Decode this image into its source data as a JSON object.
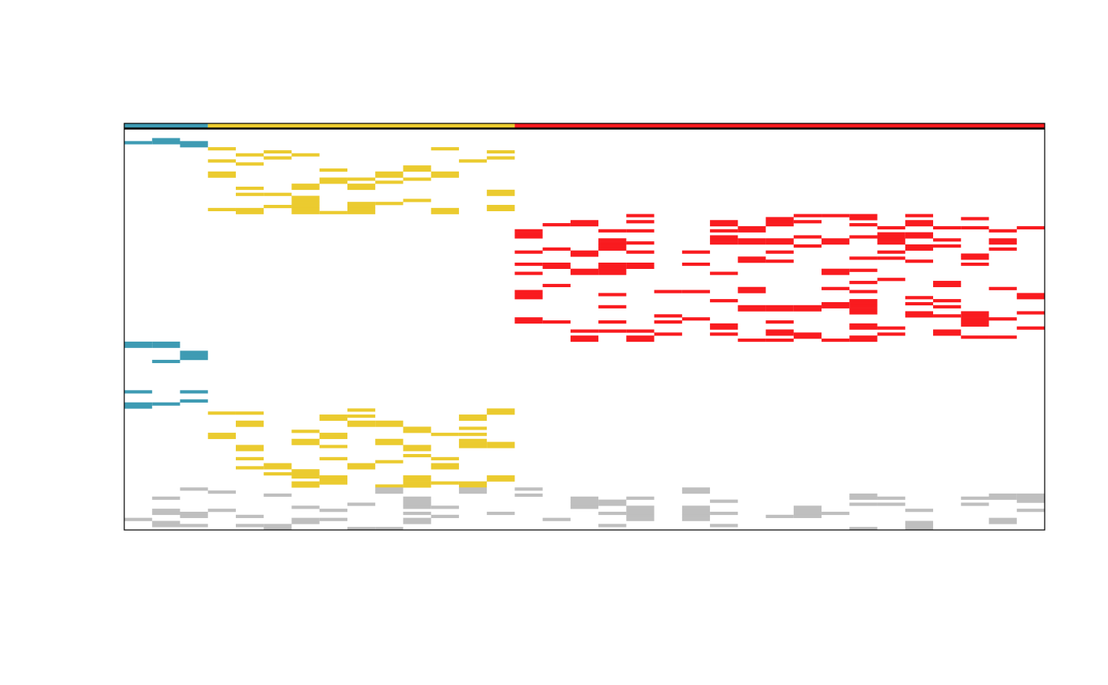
{
  "chart_data": {
    "type": "heatmap",
    "title": "",
    "xlabel": "",
    "ylabel": "",
    "grid": false,
    "legend": "none",
    "n_columns": 33,
    "n_rows": 66,
    "column_groups": [
      {
        "color": "#3e9bb3",
        "columns": [
          0,
          2
        ]
      },
      {
        "color": "#ebcb2f",
        "columns": [
          3,
          13
        ]
      },
      {
        "color": "#f91b1f",
        "columns": [
          14,
          32
        ]
      }
    ],
    "row_blocks": [
      {
        "group": 0,
        "rows": [
          0,
          2
        ]
      },
      {
        "group": 1,
        "rows": [
          3,
          13
        ]
      },
      {
        "group": 2,
        "rows": [
          14,
          34
        ]
      },
      {
        "group": 0,
        "rows": [
          35,
          45
        ]
      },
      {
        "group": 1,
        "rows": [
          46,
          58
        ]
      },
      {
        "group": 3,
        "rows": [
          59,
          65
        ]
      }
    ],
    "palette": {
      "group_0": "#3e9bb3",
      "group_1": "#ebcb2f",
      "group_2": "#f91b1f",
      "group_3": "#bfbfbf",
      "background": "#ffffff",
      "border": "#000000"
    },
    "density": {
      "matching_block": 0.42,
      "gray_block": 0.38
    }
  }
}
